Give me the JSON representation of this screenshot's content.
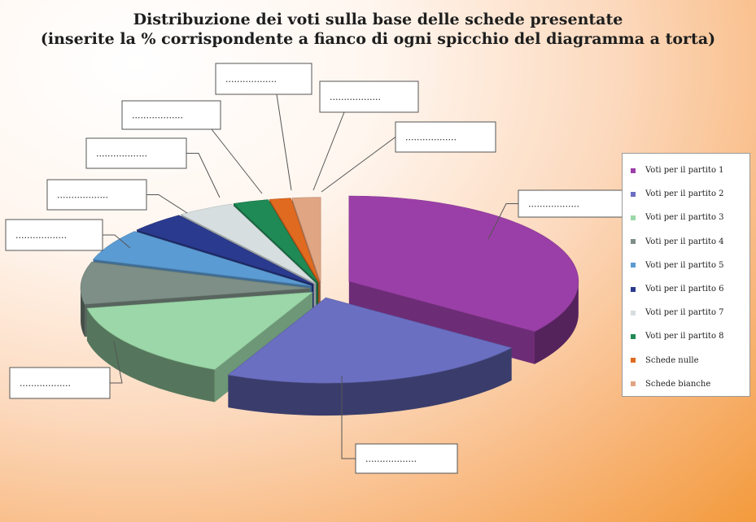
{
  "title": {
    "line1": "Distribuzione dei voti sulla base delle schede presentate",
    "line2": "(inserite la % corrispondente a fianco di ogni spicchio del diagramma a torta)"
  },
  "chart_data": {
    "type": "pie",
    "title": "Distribuzione dei voti sulla base delle schede presentate",
    "subtitle": "(inserite la % corrispondente a fianco di ogni spicchio del diagramma a torta)",
    "legend_position": "right",
    "three_d": true,
    "exploded": true,
    "placeholder_label": "..................",
    "slices": [
      {
        "label": "Voti per il partito 1",
        "value": 35,
        "color": "#9b3fa8"
      },
      {
        "label": "Voti per il partito 2",
        "value": 22,
        "color": "#6a6fc2"
      },
      {
        "label": "Voti per il partito 3",
        "value": 15,
        "color": "#9bd7a8"
      },
      {
        "label": "Voti per il partito 4",
        "value": 8,
        "color": "#7d8f86"
      },
      {
        "label": "Voti per il partito 5",
        "value": 6,
        "color": "#5b9bd3"
      },
      {
        "label": "Voti per il partito 6",
        "value": 4,
        "color": "#2a3a8e"
      },
      {
        "label": "Voti per il partito 7",
        "value": 4,
        "color": "#d6dee0"
      },
      {
        "label": "Voti per il partito 8",
        "value": 2.5,
        "color": "#1f8a55"
      },
      {
        "label": "Schede nulle",
        "value": 1.5,
        "color": "#e06a1f"
      },
      {
        "label": "Schede bianche",
        "value": 2,
        "color": "#e0a583"
      }
    ]
  }
}
